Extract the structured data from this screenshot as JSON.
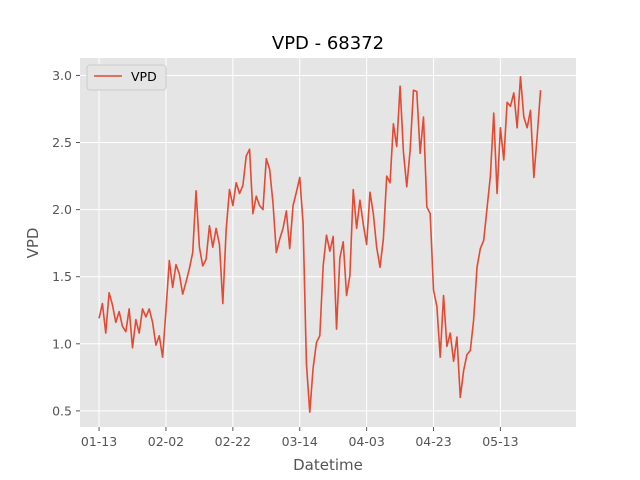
{
  "chart_data": {
    "type": "line",
    "title": "VPD - 68372",
    "xlabel": "Datetime",
    "ylabel": "VPD",
    "x_tick_labels": [
      "01-13",
      "02-02",
      "02-22",
      "03-14",
      "04-03",
      "04-23",
      "05-13"
    ],
    "y_ticks": [
      "0.5",
      "1.0",
      "1.5",
      "2.0",
      "2.5",
      "3.0"
    ],
    "ylim": [
      0.38,
      3.13
    ],
    "xlim_days": [
      -5.7,
      142.6
    ],
    "grid": true,
    "legend": {
      "position": "upper-left",
      "entries": [
        "VPD"
      ]
    },
    "colors": {
      "series": "#E24A33",
      "background": "#E5E5E5",
      "grid": "#FFFFFF"
    },
    "series": [
      {
        "name": "VPD",
        "x_day": [
          0,
          1,
          2,
          3,
          4,
          5,
          6,
          7,
          8,
          9,
          10,
          11,
          12,
          13,
          14,
          15,
          16,
          17,
          18,
          19,
          20,
          21,
          22,
          23,
          24,
          25,
          26,
          27,
          28,
          29,
          30,
          31,
          32,
          33,
          34,
          35,
          36,
          37,
          38,
          39,
          40,
          41,
          42,
          43,
          44,
          45,
          46,
          47,
          48,
          49,
          50,
          51,
          52,
          53,
          54,
          55,
          56,
          57,
          58,
          59,
          60,
          61,
          62,
          63,
          64,
          65,
          66,
          67,
          68,
          69,
          70,
          71,
          72,
          73,
          74,
          75,
          76,
          77,
          78,
          79,
          80,
          81,
          82,
          83,
          84,
          85,
          86,
          87,
          88,
          89,
          90,
          91,
          92,
          93,
          94,
          95,
          96,
          97,
          98,
          99,
          100,
          101,
          102,
          103,
          104,
          105,
          106,
          107,
          108,
          109,
          110,
          111,
          112,
          113,
          114,
          115,
          116,
          117,
          118,
          119,
          120,
          121,
          122,
          123,
          124,
          125,
          126,
          127,
          128,
          129,
          130,
          131,
          132
        ],
        "values": [
          1.19,
          1.3,
          1.08,
          1.38,
          1.29,
          1.16,
          1.24,
          1.13,
          1.09,
          1.26,
          0.97,
          1.18,
          1.08,
          1.26,
          1.2,
          1.26,
          1.16,
          0.99,
          1.06,
          0.9,
          1.25,
          1.62,
          1.42,
          1.59,
          1.52,
          1.37,
          1.46,
          1.56,
          1.68,
          2.14,
          1.72,
          1.58,
          1.63,
          1.88,
          1.72,
          1.86,
          1.74,
          1.3,
          1.85,
          2.15,
          2.03,
          2.2,
          2.12,
          2.18,
          2.4,
          2.45,
          1.97,
          2.1,
          2.03,
          2.0,
          2.38,
          2.3,
          2.05,
          1.68,
          1.78,
          1.86,
          1.99,
          1.71,
          2.03,
          2.13,
          2.24,
          1.9,
          0.85,
          0.49,
          0.82,
          1.01,
          1.06,
          1.58,
          1.81,
          1.69,
          1.8,
          1.11,
          1.64,
          1.76,
          1.36,
          1.51,
          2.15,
          1.86,
          2.07,
          1.89,
          1.74,
          2.13,
          1.97,
          1.72,
          1.57,
          1.78,
          2.25,
          2.2,
          2.64,
          2.47,
          2.92,
          2.43,
          2.17,
          2.44,
          2.89,
          2.88,
          2.42,
          2.69,
          2.02,
          1.97,
          1.4,
          1.28,
          0.9,
          1.36,
          0.98,
          1.08,
          0.87,
          1.05,
          0.6,
          0.8,
          0.92,
          0.95,
          1.18,
          1.57,
          1.71,
          1.77,
          2.01,
          2.25,
          2.72,
          2.12,
          2.61,
          2.37,
          2.8,
          2.77,
          2.87,
          2.61,
          2.99,
          2.69,
          2.61,
          2.74,
          2.24,
          2.55,
          2.89
        ]
      }
    ]
  }
}
